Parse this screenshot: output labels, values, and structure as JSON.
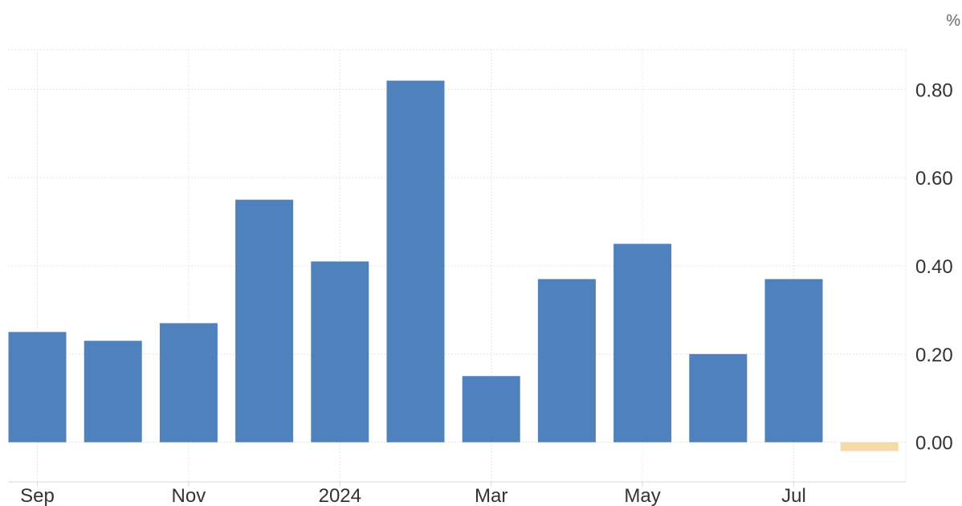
{
  "chart_data": {
    "type": "bar",
    "unit_label": "%",
    "categories": [
      "2023-09",
      "2023-10",
      "2023-11",
      "2023-12",
      "2024-01",
      "2024-02",
      "2024-03",
      "2024-04",
      "2024-05",
      "2024-06",
      "2024-07",
      "2024-08"
    ],
    "values": [
      0.25,
      0.23,
      0.27,
      0.55,
      0.41,
      0.82,
      0.15,
      0.37,
      0.45,
      0.2,
      0.37,
      -0.02
    ],
    "bar_colors": [
      "#4f81bd",
      "#4f81bd",
      "#4f81bd",
      "#4f81bd",
      "#4f81bd",
      "#4f81bd",
      "#4f81bd",
      "#4f81bd",
      "#4f81bd",
      "#4f81bd",
      "#4f81bd",
      "#f5d9a6"
    ],
    "x_tick_labels": [
      {
        "category": "2023-09",
        "label": "Sep"
      },
      {
        "category": "2023-11",
        "label": "Nov"
      },
      {
        "category": "2024-01",
        "label": "2024"
      },
      {
        "category": "2024-03",
        "label": "Mar"
      },
      {
        "category": "2024-05",
        "label": "May"
      },
      {
        "category": "2024-07",
        "label": "Jul"
      }
    ],
    "y_ticks": [
      "0.00",
      "0.20",
      "0.40",
      "0.60",
      "0.80"
    ],
    "ylim": [
      -0.09,
      0.89
    ],
    "y_axis_position": "right",
    "grid": true,
    "legend": false
  }
}
